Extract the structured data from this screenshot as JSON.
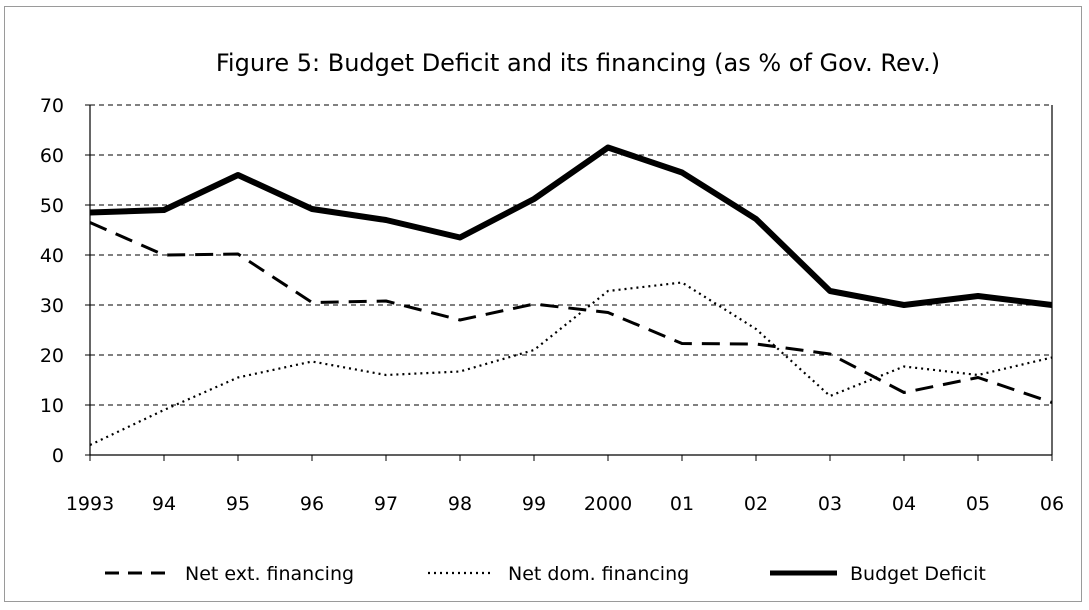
{
  "chart_data": {
    "type": "line",
    "title": "Figure 5: Budget Deficit and its financing (as % of Gov. Rev.)",
    "xlabel": "",
    "ylabel": "",
    "categories": [
      "1993",
      "94",
      "95",
      "96",
      "97",
      "98",
      "99",
      "2000",
      "01",
      "02",
      "03",
      "04",
      "05",
      "06"
    ],
    "ylim": [
      0,
      70
    ],
    "yticks": [
      0,
      10,
      20,
      30,
      40,
      50,
      60,
      70
    ],
    "grid": "horizontal dashed",
    "legend_position": "bottom",
    "series": [
      {
        "name": "Net ext. financing",
        "style": "dashed",
        "color": "#000000",
        "values": [
          46.5,
          40,
          40.2,
          30.5,
          30.8,
          27,
          30.2,
          28.5,
          22.3,
          22.2,
          20.2,
          12.5,
          15.5,
          10.5
        ]
      },
      {
        "name": "Net dom. financing",
        "style": "dotted",
        "color": "#000000",
        "values": [
          2,
          9,
          15.5,
          18.7,
          16,
          16.7,
          21,
          32.8,
          34.5,
          25.2,
          11.8,
          17.7,
          16,
          19.5
        ]
      },
      {
        "name": "Budget Deficit",
        "style": "solid-thick",
        "color": "#000000",
        "values": [
          48.5,
          49,
          56,
          49.2,
          47,
          43.5,
          51.2,
          61.5,
          56.5,
          47.2,
          32.8,
          30,
          31.8,
          30
        ]
      }
    ]
  }
}
